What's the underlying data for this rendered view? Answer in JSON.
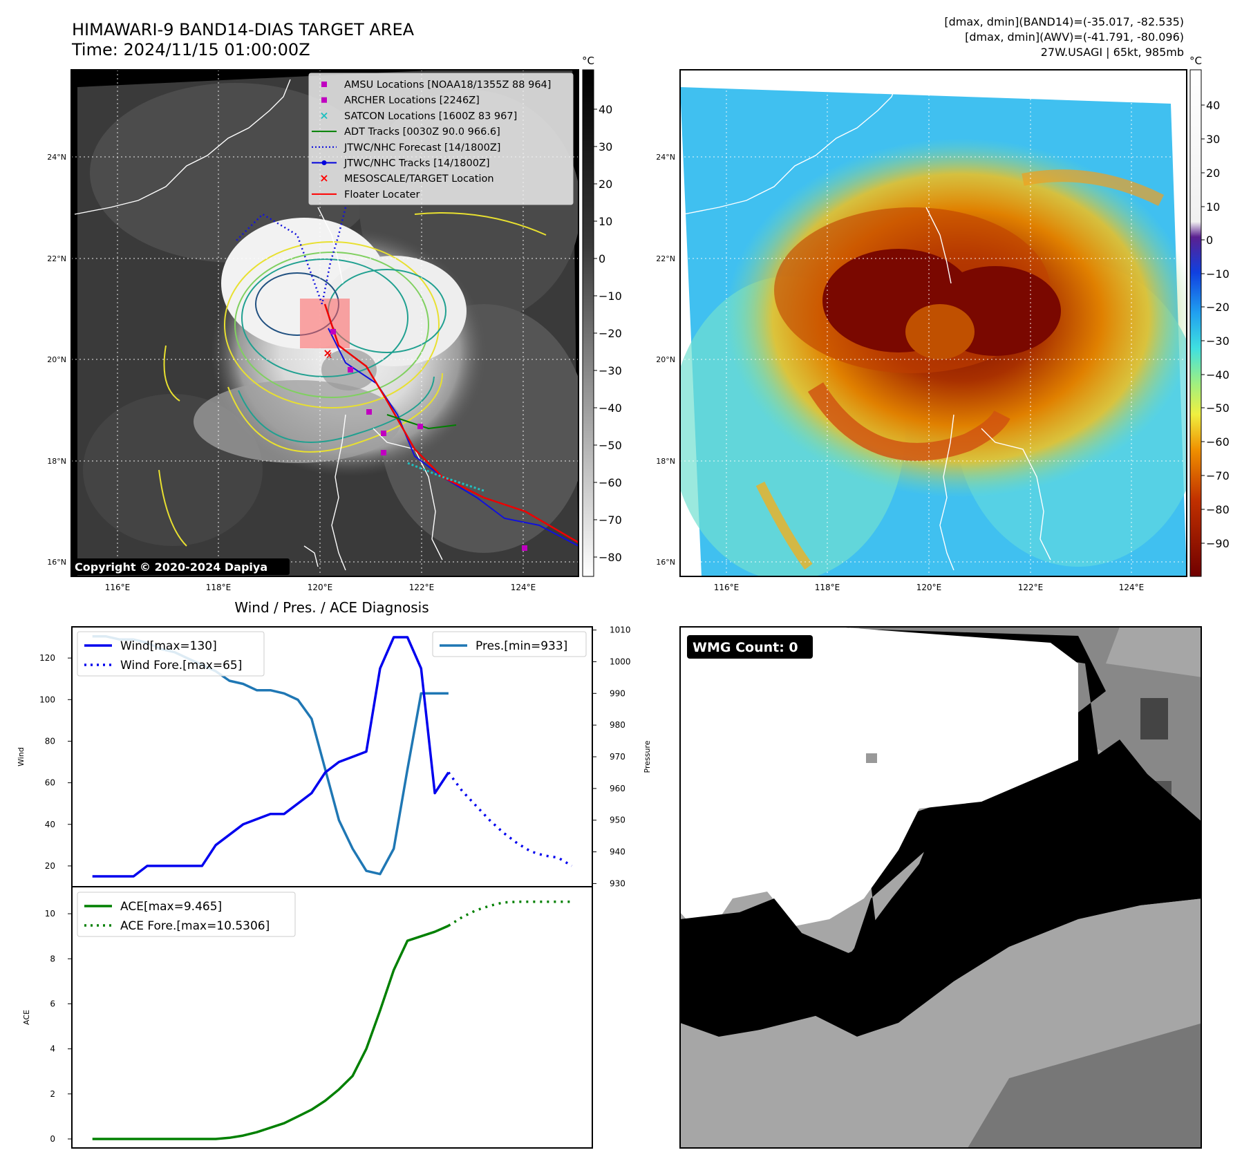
{
  "header": {
    "title_line1": "HIMAWARI-9 BAND14-DIAS TARGET AREA",
    "title_line2": "Time: 2024/11/15 01:00:00Z",
    "info_line1": "[dmax, dmin](BAND14)=(-35.017, -82.535)",
    "info_line2": "[dmax, dmin](AWV)=(-41.791, -80.096)",
    "info_line3": "27W.USAGI | 65kt, 985mb",
    "copyright": "Copyright © 2020-2024 Dapiya"
  },
  "maps": {
    "lat_labels": [
      "24°N",
      "22°N",
      "20°N",
      "18°N",
      "16°N"
    ],
    "lon_labels": [
      "116°E",
      "118°E",
      "120°E",
      "122°E",
      "124°E"
    ],
    "colorbar_unit": "°C",
    "gray_ticks": [
      "40",
      "30",
      "20",
      "10",
      "0",
      "−10",
      "−20",
      "−30",
      "−40",
      "−50",
      "−60",
      "−70",
      "−80"
    ],
    "color_ticks": [
      "40",
      "30",
      "20",
      "10",
      "0",
      "−10",
      "−20",
      "−30",
      "−40",
      "−50",
      "−60",
      "−70",
      "−80",
      "−90"
    ],
    "legend": [
      {
        "label": "AMSU Locations [NOAA18/1355Z 88 964]",
        "marker": "square",
        "color": "#c000c0"
      },
      {
        "label": "ARCHER Locations [2246Z]",
        "marker": "square",
        "color": "#c000c0"
      },
      {
        "label": "SATCON Locations [1600Z 83 967]",
        "marker": "x",
        "color": "#20c0c0"
      },
      {
        "label": "ADT Tracks [0030Z 90.0 966.6]",
        "marker": "line",
        "color": "#008000"
      },
      {
        "label": "JTWC/NHC Forecast [14/1800Z]",
        "marker": "dotted",
        "color": "#0000dd"
      },
      {
        "label": "JTWC/NHC Tracks [14/1800Z]",
        "marker": "line-dot",
        "color": "#0000dd"
      },
      {
        "label": "MESOSCALE/TARGET Location",
        "marker": "x",
        "color": "#ff0000"
      },
      {
        "label": "Floater Locater",
        "marker": "line",
        "color": "#ff0000"
      }
    ]
  },
  "wmg": {
    "label": "WMG Count: 0"
  },
  "chart_data": [
    {
      "type": "line",
      "title": "Wind / Pres. / ACE Diagnosis",
      "ylabel": "Wind",
      "ylabel_right": "Pressure",
      "ylim": [
        10,
        135
      ],
      "ylim_right": [
        929,
        1011
      ],
      "yticks": [
        20,
        40,
        60,
        80,
        100,
        120
      ],
      "yticks_right": [
        930,
        940,
        950,
        960,
        970,
        980,
        990,
        1000,
        1010
      ],
      "series": [
        {
          "name": "Wind[max=130]",
          "color": "#0000ee",
          "style": "solid",
          "axis": "left",
          "x": [
            0,
            3,
            4,
            6,
            8,
            9,
            11,
            13,
            14,
            16,
            17,
            18,
            20,
            21,
            22,
            23,
            24,
            25,
            26
          ],
          "values": [
            15,
            15,
            20,
            20,
            20,
            30,
            40,
            45,
            45,
            55,
            65,
            70,
            75,
            115,
            130,
            130,
            115,
            55,
            65
          ]
        },
        {
          "name": "Wind Fore.[max=65]",
          "color": "#0000ee",
          "style": "dotted",
          "axis": "left",
          "x": [
            26,
            27,
            28,
            29,
            30,
            31,
            32,
            33,
            34,
            35
          ],
          "values": [
            65,
            56,
            49,
            42,
            36,
            31,
            27,
            25,
            24,
            20
          ]
        },
        {
          "name": "Pres.[min=933]",
          "color": "#1f77b4",
          "style": "solid",
          "axis": "right",
          "x": [
            0,
            1,
            2,
            3,
            4,
            5,
            6,
            7,
            8,
            9,
            10,
            11,
            12,
            13,
            14,
            15,
            16,
            17,
            18,
            19,
            20,
            21,
            22,
            23,
            24,
            25,
            26
          ],
          "values": [
            1008,
            1008,
            1007,
            1007,
            1006,
            1004,
            1003,
            1001,
            999,
            997,
            994,
            993,
            991,
            991,
            990,
            988,
            982,
            966,
            950,
            941,
            934,
            933,
            941,
            966,
            990,
            990,
            990
          ]
        }
      ]
    },
    {
      "type": "line",
      "ylabel": "ACE",
      "ylim": [
        -0.4,
        11.2
      ],
      "yticks": [
        0,
        2,
        4,
        6,
        8,
        10
      ],
      "series": [
        {
          "name": "ACE[max=9.465]",
          "color": "#008000",
          "style": "solid",
          "x": [
            0,
            9,
            10,
            11,
            12,
            13,
            14,
            15,
            16,
            17,
            18,
            19,
            20,
            21,
            22,
            23,
            24,
            25,
            26
          ],
          "values": [
            0,
            0,
            0.05,
            0.15,
            0.3,
            0.5,
            0.7,
            1.0,
            1.3,
            1.7,
            2.2,
            2.8,
            4.0,
            5.7,
            7.5,
            8.8,
            9.0,
            9.2,
            9.465
          ]
        },
        {
          "name": "ACE Fore.[max=10.5306]",
          "color": "#008000",
          "style": "dotted",
          "x": [
            26,
            27,
            28,
            29,
            30,
            31,
            32,
            33,
            34,
            35
          ],
          "values": [
            9.465,
            9.85,
            10.15,
            10.35,
            10.5,
            10.53,
            10.53,
            10.53,
            10.53,
            10.53
          ]
        }
      ]
    }
  ]
}
